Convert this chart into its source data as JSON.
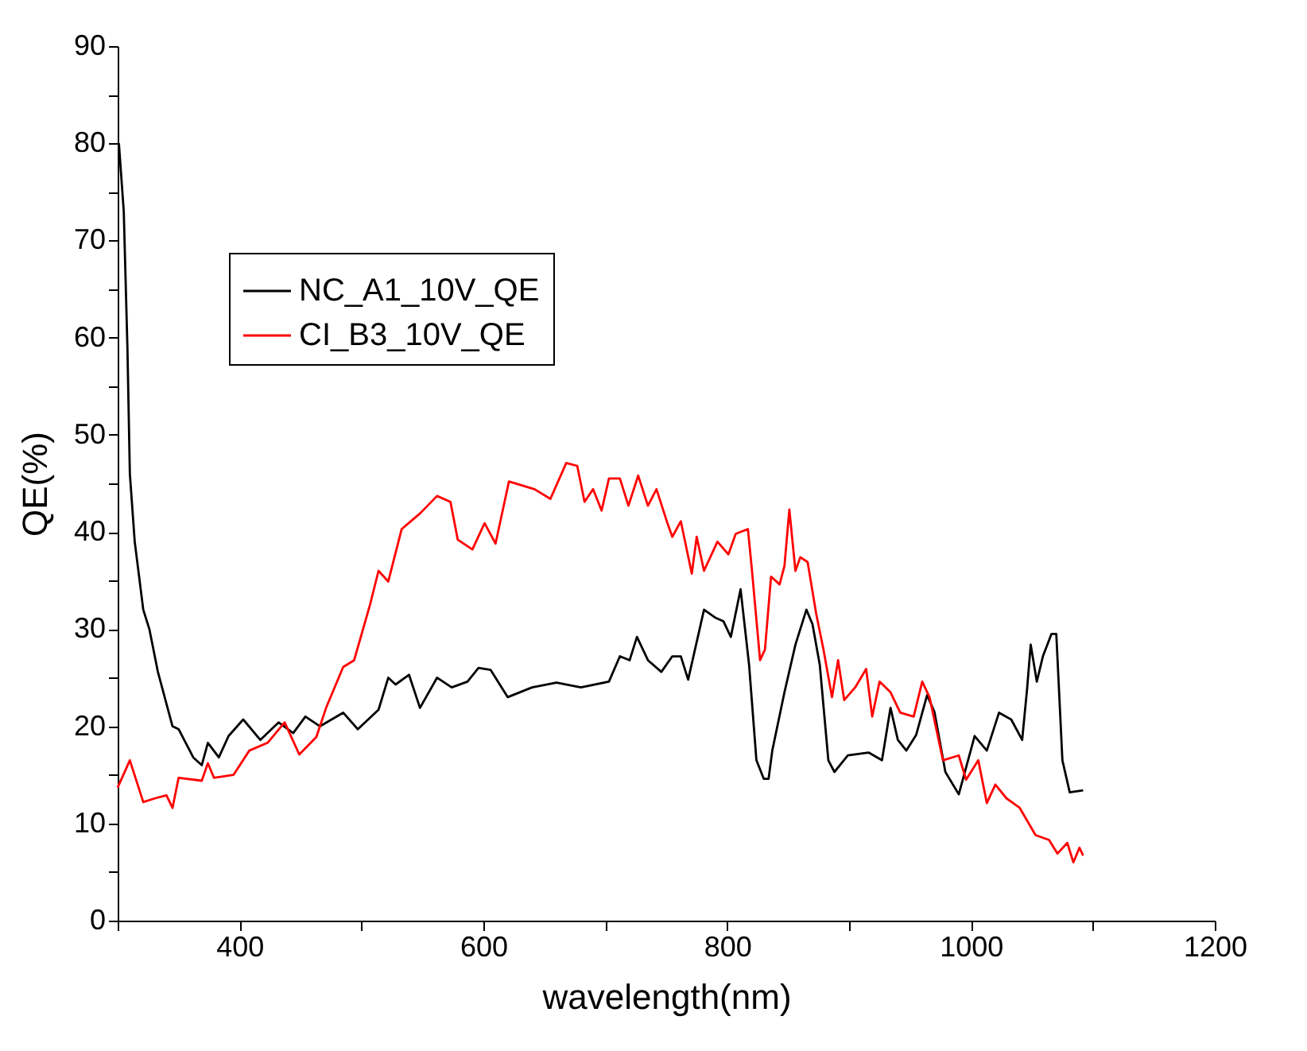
{
  "chart_data": {
    "type": "line",
    "xlabel": "wavelength(nm)",
    "ylabel": "QE(%)",
    "xlim": [
      300,
      1200
    ],
    "ylim": [
      0,
      90
    ],
    "xticks": [
      {
        "value": 300,
        "label": null
      },
      400,
      {
        "value": 500,
        "label": null
      },
      600,
      {
        "value": 700,
        "label": null
      },
      800,
      {
        "value": 900,
        "label": null
      },
      1000,
      {
        "value": 1100,
        "label": null
      },
      1200
    ],
    "yticks": [
      0,
      {
        "value": 5,
        "label": null
      },
      10,
      {
        "value": 15,
        "label": null
      },
      20,
      {
        "value": 25,
        "label": null
      },
      30,
      {
        "value": 35,
        "label": null
      },
      40,
      {
        "value": 45,
        "label": null
      },
      50,
      {
        "value": 55,
        "label": null
      },
      60,
      {
        "value": 65,
        "label": null
      },
      70,
      {
        "value": 75,
        "label": null
      },
      80,
      {
        "value": 85,
        "label": null
      },
      90
    ],
    "grid": false,
    "legend": "top left",
    "marker": "none",
    "line_style": "solid",
    "series": [
      {
        "name": "NC_A1_10V_QE",
        "color": "#000000",
        "x": [
          301,
          305,
          308,
          310,
          314,
          321,
          326,
          333,
          345,
          350,
          362,
          369,
          374,
          383,
          391,
          403,
          417,
          432,
          444,
          454,
          466,
          485,
          497,
          514,
          522,
          528,
          539,
          548,
          562,
          574,
          587,
          596,
          606,
          610,
          620,
          640,
          660,
          680,
          703,
          712,
          720,
          726,
          735,
          746,
          755,
          762,
          768,
          781,
          790,
          797,
          803,
          811,
          818,
          824,
          830,
          834,
          837,
          847,
          856,
          865,
          870,
          876,
          883,
          888,
          899,
          916,
          927,
          934,
          940,
          947,
          955,
          964,
          970,
          979,
          990,
          1003,
          1013,
          1023,
          1033,
          1042,
          1046,
          1049,
          1054,
          1059,
          1066,
          1070,
          1072,
          1075,
          1081,
          1092
        ],
        "values": [
          80,
          73,
          59,
          46,
          39,
          32,
          30,
          25.6,
          20,
          19.7,
          16.8,
          16,
          18.3,
          16.8,
          19,
          20.7,
          18.6,
          20.4,
          19.3,
          21,
          20,
          21.4,
          19.7,
          21.7,
          25,
          24.3,
          25.3,
          21.9,
          25,
          24,
          24.6,
          26,
          25.8,
          25,
          23,
          24,
          24.5,
          24,
          24.6,
          27.2,
          26.8,
          29.2,
          26.8,
          25.6,
          27.2,
          27.2,
          24.8,
          32,
          31.2,
          30.8,
          29.2,
          34.1,
          26.3,
          16.5,
          14.6,
          14.6,
          17.5,
          23.5,
          28.4,
          32,
          30.5,
          26.3,
          16.5,
          15.3,
          17,
          17.3,
          16.5,
          21.9,
          18.6,
          17.5,
          19.1,
          23.2,
          21.5,
          15.3,
          13,
          19,
          17.5,
          21.4,
          20.7,
          18.6,
          23.8,
          28.4,
          24.6,
          27.2,
          29.5,
          29.5,
          24.3,
          16.5,
          13.2,
          13.4
        ]
      },
      {
        "name": "CI_B3_10V_QE",
        "color": "#ff0000",
        "x": [
          300,
          310,
          321,
          331,
          340,
          345,
          350,
          369,
          374,
          379,
          395,
          408,
          423,
          437,
          449,
          463,
          471,
          485,
          494,
          507,
          514,
          522,
          533,
          548,
          562,
          573,
          579,
          591,
          601,
          610,
          621,
          642,
          655,
          668,
          677,
          683,
          690,
          697,
          703,
          712,
          719,
          727,
          735,
          742,
          751,
          755,
          762,
          771,
          775,
          781,
          792,
          801,
          807,
          817,
          820,
          827,
          831,
          836,
          843,
          847,
          851,
          856,
          860,
          866,
          873,
          879,
          886,
          891,
          896,
          905,
          914,
          919,
          925,
          934,
          942,
          953,
          960,
          966,
          977,
          990,
          996,
          1006,
          1013,
          1020,
          1029,
          1040,
          1053,
          1064,
          1071,
          1079,
          1084,
          1089,
          1092
        ],
        "values": [
          13.7,
          16.5,
          12.2,
          12.6,
          12.9,
          11.6,
          14.7,
          14.4,
          16.2,
          14.7,
          15,
          17.5,
          18.3,
          20.4,
          17.1,
          18.9,
          21.9,
          26.1,
          26.8,
          32.5,
          36,
          34.9,
          40.3,
          41.9,
          43.7,
          43.1,
          39.2,
          38.2,
          40.9,
          38.8,
          45.2,
          44.4,
          43.4,
          47.1,
          46.8,
          43.1,
          44.4,
          42.2,
          45.5,
          45.5,
          42.7,
          45.8,
          42.7,
          44.4,
          40.9,
          39.5,
          41.1,
          35.7,
          39.5,
          36,
          39,
          37.7,
          39.8,
          40.3,
          36.5,
          26.8,
          27.9,
          35.4,
          34.6,
          36.5,
          42.3,
          36,
          37.4,
          36.9,
          31.6,
          27.9,
          23,
          26.8,
          22.7,
          24,
          25.9,
          21,
          24.6,
          23.5,
          21.4,
          21,
          24.6,
          23,
          16.5,
          17,
          14.5,
          16.5,
          12.1,
          14,
          12.6,
          11.6,
          8.8,
          8.3,
          6.9,
          8,
          6,
          7.5,
          6.7
        ]
      }
    ]
  }
}
